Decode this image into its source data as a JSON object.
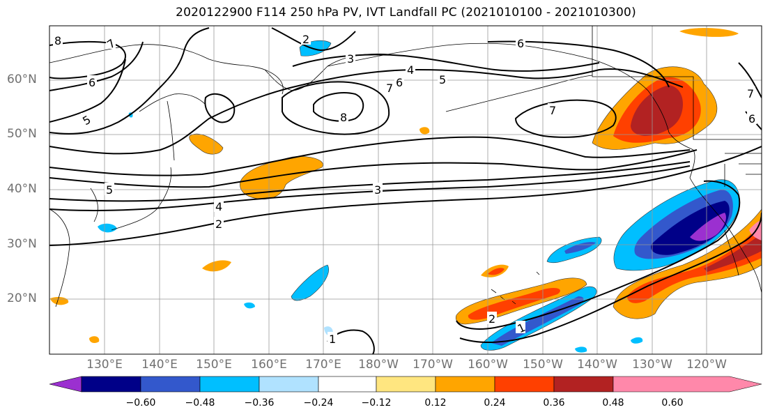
{
  "title": "2020122900 F114 250 hPa PV, IVT Landfall PC (2021010100 - 2021010300)",
  "lon_labels": [
    "130°E",
    "140°E",
    "150°E",
    "160°E",
    "170°E",
    "180°W",
    "170°W",
    "160°W",
    "150°W",
    "140°W",
    "130°W",
    "120°W"
  ],
  "lat_labels": [
    "60°N",
    "50°N",
    "40°N",
    "30°N",
    "20°N"
  ],
  "colorbar": {
    "colors": [
      "#9b30d0",
      "#000088",
      "#3358cc",
      "#00bfff",
      "#b0e2ff",
      "#ffffff",
      "#ffe680",
      "#ffa500",
      "#ff4000",
      "#b22222",
      "#ff88aa"
    ],
    "ticks": [
      "−0.60",
      "−0.48",
      "−0.36",
      "−0.24",
      "−0.12",
      "0.12",
      "0.24",
      "0.36",
      "0.48",
      "0.60"
    ]
  },
  "contour_labels": [
    "8",
    "7",
    "6",
    "5",
    "2",
    "3",
    "4",
    "5",
    "6",
    "7",
    "8",
    "7",
    "6",
    "5",
    "4",
    "3",
    "2",
    "7",
    "6",
    "2",
    "1",
    "1"
  ]
}
